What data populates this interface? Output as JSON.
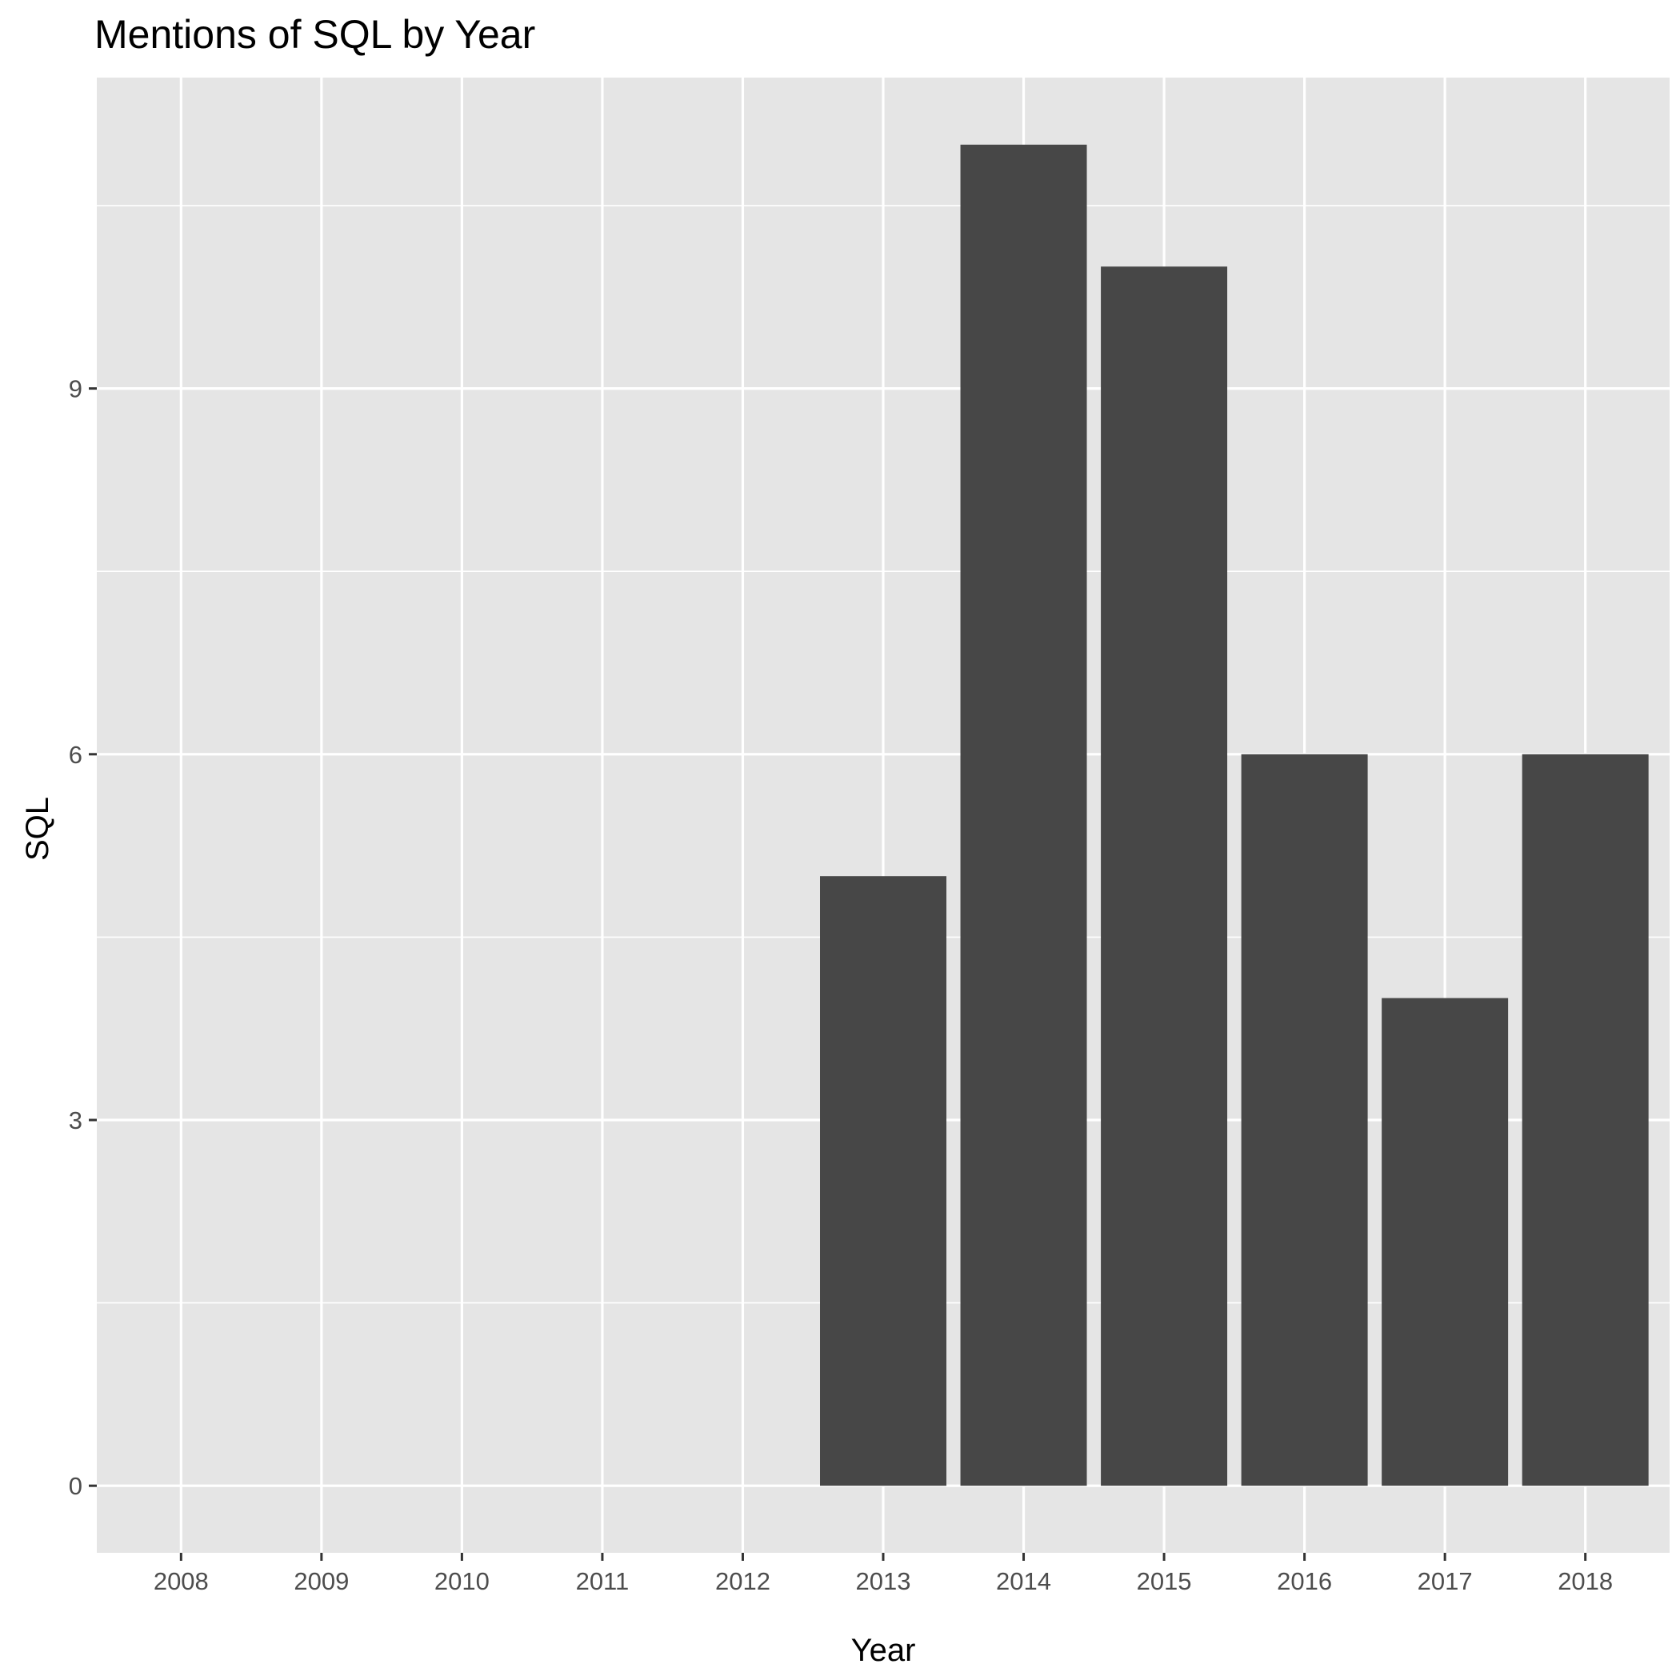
{
  "chart_data": {
    "type": "bar",
    "title": "Mentions of SQL by Year",
    "xlabel": "Year",
    "ylabel": "SQL",
    "categories": [
      "2008",
      "2009",
      "2010",
      "2011",
      "2012",
      "2013",
      "2014",
      "2015",
      "2016",
      "2017",
      "2018"
    ],
    "values": [
      0,
      0,
      0,
      0,
      0,
      5,
      11,
      10,
      6,
      4,
      6
    ],
    "ylim": [
      -0.55,
      11.55
    ],
    "yticks": [
      0,
      3,
      6,
      9
    ],
    "y_tick_labels": [
      "0",
      "3",
      "6",
      "9"
    ],
    "grid": true,
    "legend": "none",
    "colors": {
      "bar": "#474747",
      "panel": "#e5e5e5",
      "grid": "#ffffff",
      "tick": "#333333"
    }
  }
}
